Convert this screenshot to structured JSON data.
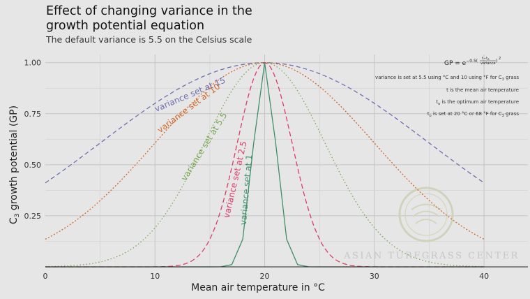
{
  "title": "Effect of changing variance in the growth potential equation",
  "subtitle": "The default variance is 5.5 on the Celsius scale",
  "watermark": "ASIAN TURFGRASS CENTER",
  "chart_data": {
    "type": "line",
    "xlabel": "Mean air temperature in °C",
    "ylabel_prefix": "C",
    "ylabel_sub": "3",
    "ylabel_suffix": " growth potential (GP)",
    "xlim": [
      0,
      44
    ],
    "ylim": [
      0,
      1.04
    ],
    "x_ticks": [
      0,
      10,
      20,
      30,
      40
    ],
    "y_ticks": [
      0.25,
      0.5,
      0.75,
      1.0
    ],
    "y_tick_labels": [
      "0.25",
      "0.50",
      "0.75",
      "1.00"
    ],
    "grid": true,
    "optimum_temp": 20,
    "x_range": [
      0,
      40
    ],
    "series": [
      {
        "name": "variance set at 15",
        "variance": 15,
        "color": "#6e6fb0",
        "dash": "6,4"
      },
      {
        "name": "variance set at 10",
        "variance": 10,
        "color": "#d2692a",
        "dash": "2,2.5"
      },
      {
        "name": "variance set at 5.5",
        "variance": 5.5,
        "color": "#7aa856",
        "dash": "1.5,3"
      },
      {
        "name": "variance set at 2.5",
        "variance": 2.5,
        "color": "#dc3b68",
        "dash": "7,4"
      },
      {
        "name": "variance set at 1",
        "variance": 1,
        "color": "#3e8f68",
        "dash": ""
      }
    ],
    "annotations": {
      "formula_lhs": "GP = e",
      "formula_exp_prefix": "−0.5(",
      "formula_num": "t−t",
      "formula_num_sub": "o",
      "formula_den": "variance",
      "formula_exp_suffix": ")",
      "formula_power": "2",
      "note1_main": "variance is set at 5.5 using °C and 10 using °F for C",
      "note1_sub": "3",
      "note1_tail": " grass",
      "note2": "t is the mean air temperature",
      "note3_main": "t",
      "note3_sub": "o",
      "note3_tail": " is the optimum air temperature",
      "note4_main": "t",
      "note4_sub": "o",
      "note4_tail": " is set at 20 °C or 68 °F for C",
      "note4_sub2": "3",
      "note4_tail2": " grass"
    }
  }
}
